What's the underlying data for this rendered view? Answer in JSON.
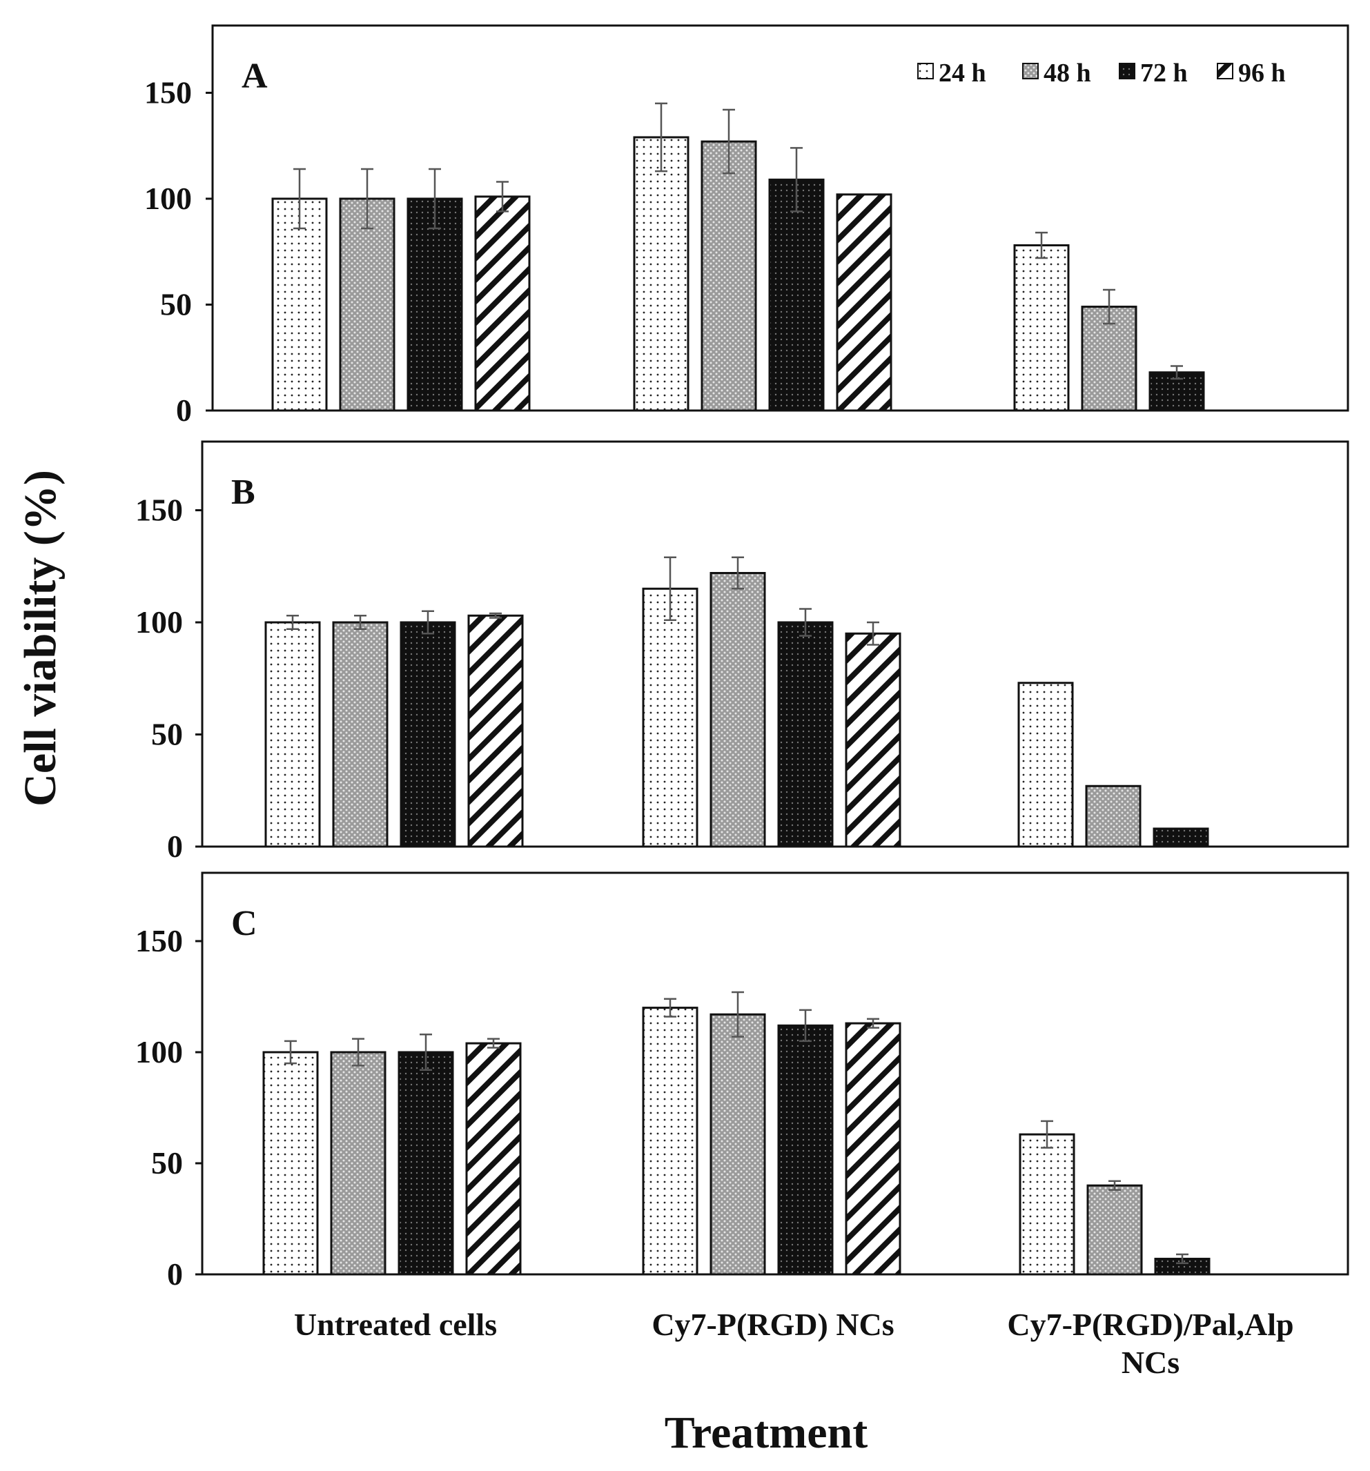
{
  "chart_data": [
    {
      "type": "bar",
      "panel": "A",
      "categories": [
        "Untreated cells",
        "Cy7-P(RGD) NCs",
        "Cy7-P(RGD)/Pal,Alp NCs"
      ],
      "series": [
        {
          "name": "24 h",
          "values": [
            100,
            129,
            78
          ],
          "errors": [
            14,
            16,
            6
          ]
        },
        {
          "name": "48 h",
          "values": [
            100,
            127,
            49
          ],
          "errors": [
            14,
            15,
            8
          ]
        },
        {
          "name": "72 h",
          "values": [
            100,
            109,
            18
          ],
          "errors": [
            14,
            15,
            3
          ]
        },
        {
          "name": "96 h",
          "values": [
            101,
            102,
            null
          ],
          "errors": [
            7,
            0,
            null
          ]
        }
      ],
      "yticks": [
        0,
        50,
        100,
        150
      ],
      "ylim": [
        0,
        180
      ]
    },
    {
      "type": "bar",
      "panel": "B",
      "categories": [
        "Untreated cells",
        "Cy7-P(RGD) NCs",
        "Cy7-P(RGD)/Pal,Alp NCs"
      ],
      "series": [
        {
          "name": "24 h",
          "values": [
            100,
            115,
            73
          ],
          "errors": [
            3,
            14,
            0
          ]
        },
        {
          "name": "48 h",
          "values": [
            100,
            122,
            27
          ],
          "errors": [
            3,
            7,
            0
          ]
        },
        {
          "name": "72 h",
          "values": [
            100,
            100,
            8
          ],
          "errors": [
            5,
            6,
            0
          ]
        },
        {
          "name": "96 h",
          "values": [
            103,
            95,
            null
          ],
          "errors": [
            1,
            5,
            null
          ]
        }
      ],
      "yticks": [
        0,
        50,
        100,
        150
      ],
      "ylim": [
        0,
        180
      ]
    },
    {
      "type": "bar",
      "panel": "C",
      "categories": [
        "Untreated cells",
        "Cy7-P(RGD) NCs",
        "Cy7-P(RGD)/Pal,Alp NCs"
      ],
      "series": [
        {
          "name": "24 h",
          "values": [
            100,
            120,
            63
          ],
          "errors": [
            5,
            4,
            6
          ]
        },
        {
          "name": "48 h",
          "values": [
            100,
            117,
            40
          ],
          "errors": [
            6,
            10,
            2
          ]
        },
        {
          "name": "72 h",
          "values": [
            100,
            112,
            7
          ],
          "errors": [
            8,
            7,
            2
          ]
        },
        {
          "name": "96 h",
          "values": [
            104,
            113,
            null
          ],
          "errors": [
            2,
            2,
            null
          ]
        }
      ],
      "yticks": [
        0,
        50,
        100,
        150
      ],
      "ylim": [
        0,
        180
      ]
    }
  ],
  "legend": [
    "24 h",
    "48 h",
    "72 h",
    "96 h"
  ],
  "category_labels": {
    "cat1": "Untreated cells",
    "cat2": "Cy7-P(RGD) NCs",
    "cat3_line1": "Cy7-P(RGD)/Pal,Alp",
    "cat3_line2": "NCs"
  },
  "xlabel": "Treatment",
  "ylabel": "Cell viability (%)"
}
